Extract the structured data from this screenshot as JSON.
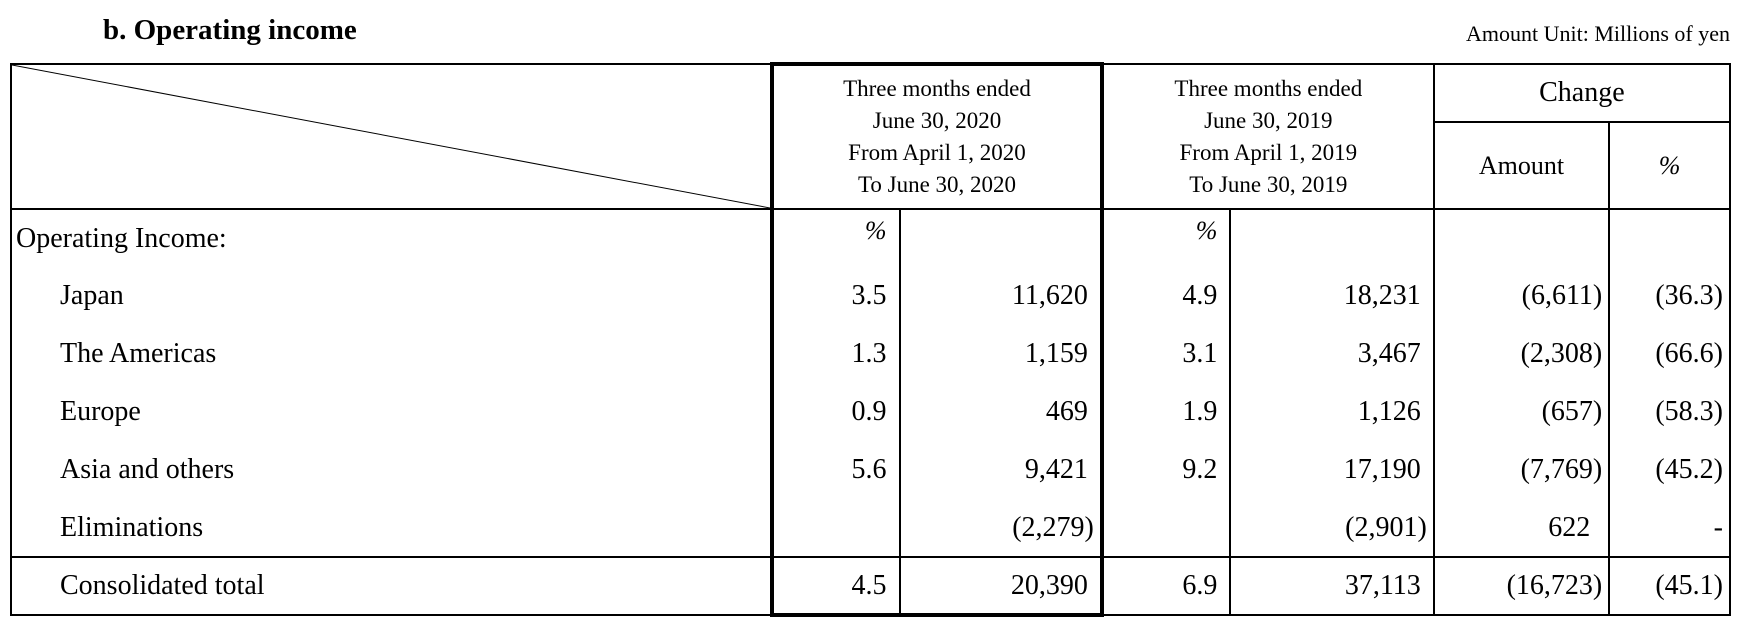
{
  "title": "b. Operating income",
  "unit": "Amount Unit: Millions of yen",
  "header": {
    "period_2020": [
      "Three months ended",
      "June 30, 2020",
      "From April 1, 2020",
      "To June 30, 2020"
    ],
    "period_2019": [
      "Three months ended",
      "June 30, 2019",
      "From April 1, 2019",
      "To June 30, 2019"
    ],
    "change": "Change",
    "amount": "Amount",
    "percent": "%"
  },
  "section_label": "Operating Income:",
  "pct_marker": "%",
  "rows": [
    {
      "label": "Japan",
      "pct_2020": "3.5",
      "amt_2020": "11,620",
      "pct_2019": "4.9",
      "amt_2019": "18,231",
      "change_amt": "(6,611)",
      "change_pct": "(36.3)"
    },
    {
      "label": "The Americas",
      "pct_2020": "1.3",
      "amt_2020": "1,159",
      "pct_2019": "3.1",
      "amt_2019": "3,467",
      "change_amt": "(2,308)",
      "change_pct": "(66.6)"
    },
    {
      "label": "Europe",
      "pct_2020": "0.9",
      "amt_2020": "469",
      "pct_2019": "1.9",
      "amt_2019": "1,126",
      "change_amt": "(657)",
      "change_pct": "(58.3)"
    },
    {
      "label": "Asia and others",
      "pct_2020": "5.6",
      "amt_2020": "9,421",
      "pct_2019": "9.2",
      "amt_2019": "17,190",
      "change_amt": "(7,769)",
      "change_pct": "(45.2)"
    },
    {
      "label": "Eliminations",
      "pct_2020": "",
      "amt_2020": "(2,279)",
      "pct_2019": "",
      "amt_2019": "(2,901)",
      "change_amt": "622",
      "change_pct": "-"
    }
  ],
  "total": {
    "label": "Consolidated total",
    "pct_2020": "4.5",
    "amt_2020": "20,390",
    "pct_2019": "6.9",
    "amt_2019": "37,113",
    "change_amt": "(16,723)",
    "change_pct": "(45.1)"
  }
}
